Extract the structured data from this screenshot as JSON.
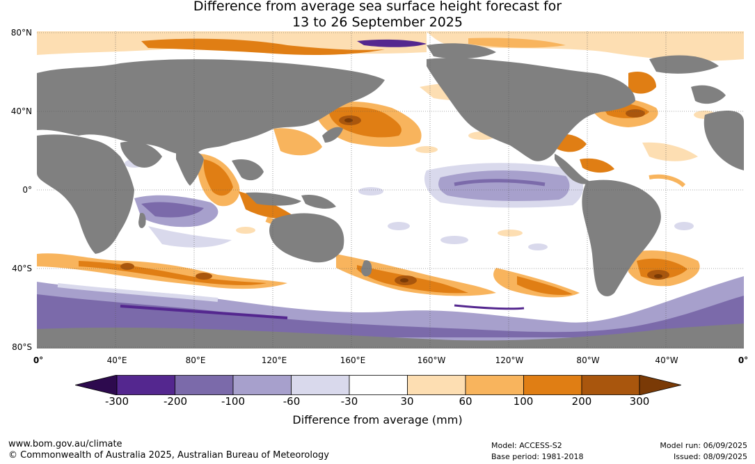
{
  "title": "Difference from average sea surface height forecast for\n13 to 26 September 2025",
  "latitude_labels": [
    "80°N",
    "40°N",
    "0°",
    "40°S",
    "80°S"
  ],
  "longitude_labels": [
    "0°",
    "40°E",
    "80°E",
    "120°E",
    "160°E",
    "160°W",
    "120°W",
    "80°W",
    "40°W",
    "0°"
  ],
  "legend": {
    "title": "Difference from average (mm)",
    "tick_labels": [
      "-300",
      "-200",
      "-100",
      "-60",
      "-30",
      "30",
      "60",
      "100",
      "200",
      "300"
    ],
    "colors": {
      "below_-300": "#2d0a4e",
      "-300_to_-200": "#54278f",
      "-200_to_-100": "#7b6aaa",
      "-100_to_-60": "#a7a0cc",
      "-60_to_-30": "#d9d9ec",
      "-30_to_30": "#ffffff",
      "30_to_60": "#fddeb2",
      "60_to_100": "#f8b45d",
      "100_to_200": "#e07e14",
      "200_to_300": "#a9560d",
      "above_300": "#7a3a06"
    },
    "land_color": "#808080"
  },
  "footer": {
    "url": "www.bom.gov.au/climate",
    "copyright": "© Commonwealth of Australia 2025, Australian Bureau of Meteorology",
    "model": "Model: ACCESS-S2",
    "base_period": "Base period: 1981-2018",
    "model_run": "Model run: 06/09/2025",
    "issued": "Issued: 08/09/2025"
  }
}
